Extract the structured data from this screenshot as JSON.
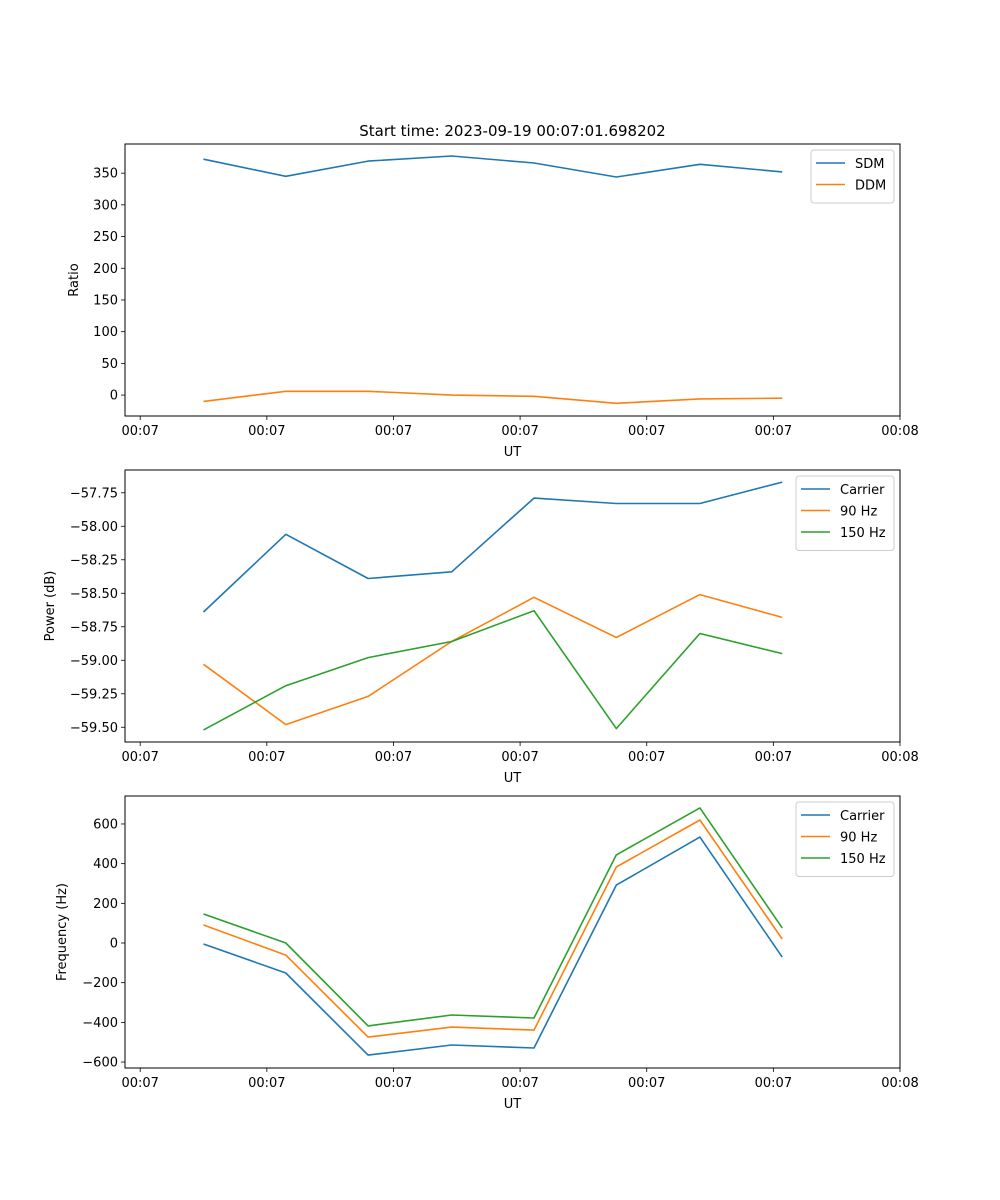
{
  "chart_data": [
    {
      "type": "line",
      "title": "Start time: 2023-09-19 00:07:01.698202",
      "xlabel": "UT",
      "ylabel": "Ratio",
      "x": [
        5.0,
        11.5,
        18.0,
        24.6,
        31.1,
        37.6,
        44.2,
        50.7
      ],
      "xlim": [
        -1.2,
        60
      ],
      "x_ticks": [
        0,
        10,
        20,
        30,
        40,
        50,
        60
      ],
      "x_tick_labels": [
        "00:07",
        "00:07",
        "00:07",
        "00:07",
        "00:07",
        "00:07",
        "00:08"
      ],
      "ylim": [
        -33,
        396
      ],
      "y_ticks": [
        0,
        50,
        100,
        150,
        200,
        250,
        300,
        350
      ],
      "y_tick_labels": [
        "0",
        "50",
        "100",
        "150",
        "200",
        "250",
        "300",
        "350"
      ],
      "legend": "top-right",
      "series": [
        {
          "name": "SDM",
          "color": "#1f77b4",
          "values": [
            372,
            345,
            369,
            377,
            366,
            344,
            364,
            352
          ]
        },
        {
          "name": "DDM",
          "color": "#ff7f0e",
          "values": [
            -10,
            6,
            6,
            0,
            -2,
            -13,
            -6,
            -5
          ]
        }
      ]
    },
    {
      "type": "line",
      "title": "",
      "xlabel": "UT",
      "ylabel": "Power (dB)",
      "x": [
        5.0,
        11.5,
        18.0,
        24.6,
        31.1,
        37.6,
        44.2,
        50.7
      ],
      "xlim": [
        -1.2,
        60
      ],
      "x_ticks": [
        0,
        10,
        20,
        30,
        40,
        50,
        60
      ],
      "x_tick_labels": [
        "00:07",
        "00:07",
        "00:07",
        "00:07",
        "00:07",
        "00:07",
        "00:08"
      ],
      "ylim": [
        -59.61,
        -57.58
      ],
      "y_ticks": [
        -57.75,
        -58.0,
        -58.25,
        -58.5,
        -58.75,
        -59.0,
        -59.25,
        -59.5
      ],
      "y_tick_labels": [
        "−57.75",
        "−58.00",
        "−58.25",
        "−58.50",
        "−58.75",
        "−59.00",
        "−59.25",
        "−59.50"
      ],
      "legend": "top-right",
      "series": [
        {
          "name": "Carrier",
          "color": "#1f77b4",
          "values": [
            -58.64,
            -58.06,
            -58.39,
            -58.34,
            -57.79,
            -57.83,
            -57.83,
            -57.67
          ]
        },
        {
          "name": "90 Hz",
          "color": "#ff7f0e",
          "values": [
            -59.03,
            -59.48,
            -59.27,
            -58.86,
            -58.53,
            -58.83,
            -58.51,
            -58.68
          ]
        },
        {
          "name": "150 Hz",
          "color": "#2ca02c",
          "values": [
            -59.52,
            -59.19,
            -58.98,
            -58.86,
            -58.63,
            -59.51,
            -58.8,
            -58.95
          ]
        }
      ]
    },
    {
      "type": "line",
      "title": "",
      "xlabel": "UT",
      "ylabel": "Frequency (Hz)",
      "x": [
        5.0,
        11.5,
        18.0,
        24.6,
        31.1,
        37.6,
        44.2,
        50.7
      ],
      "xlim": [
        -1.2,
        60
      ],
      "x_ticks": [
        0,
        10,
        20,
        30,
        40,
        50,
        60
      ],
      "x_tick_labels": [
        "00:07",
        "00:07",
        "00:07",
        "00:07",
        "00:07",
        "00:07",
        "00:08"
      ],
      "ylim": [
        -630,
        741
      ],
      "y_ticks": [
        -600,
        -400,
        -200,
        0,
        200,
        400,
        600
      ],
      "y_tick_labels": [
        "−600",
        "−400",
        "−200",
        "0",
        "200",
        "400",
        "600"
      ],
      "legend": "top-right",
      "series": [
        {
          "name": "Carrier",
          "color": "#1f77b4",
          "values": [
            -5,
            -151,
            -565,
            -514,
            -529,
            292,
            534,
            -71
          ]
        },
        {
          "name": "90 Hz",
          "color": "#ff7f0e",
          "values": [
            91,
            -61,
            -474,
            -424,
            -439,
            383,
            620,
            20
          ]
        },
        {
          "name": "150 Hz",
          "color": "#2ca02c",
          "values": [
            146,
            0,
            -418,
            -363,
            -378,
            444,
            681,
            76
          ]
        }
      ]
    }
  ]
}
